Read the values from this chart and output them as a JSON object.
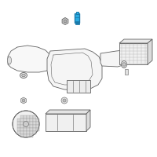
{
  "background_color": "#ffffff",
  "fig_size": [
    2.0,
    2.0
  ],
  "dpi": 100,
  "line_color": "#606060",
  "highlight_color": "#29abe2",
  "highlight_dark": "#1a7aaa",
  "lw": 0.6,
  "lw_thin": 0.4
}
